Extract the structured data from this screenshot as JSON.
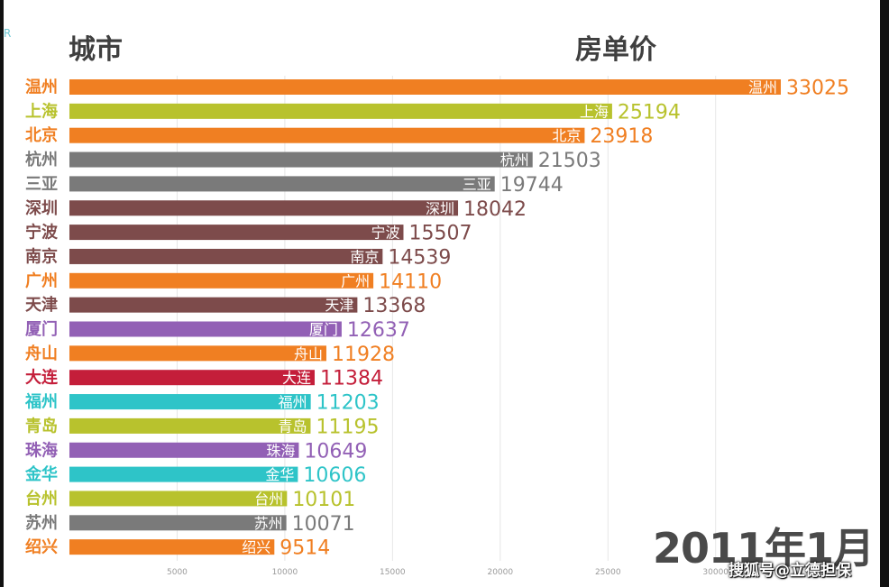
{
  "header": {
    "city_label": "城市",
    "price_label": "房单价",
    "corner_mark": "R"
  },
  "date_label": "2011年1月",
  "watermark": "搜狐号@立德担保",
  "chart_data": {
    "type": "bar",
    "orientation": "horizontal",
    "title": "",
    "xlabel": "",
    "ylabel": "",
    "xlim": [
      0,
      33025
    ],
    "xticks": [
      5000,
      10000,
      15000,
      20000,
      25000,
      30000
    ],
    "categories": [
      "温州",
      "上海",
      "北京",
      "杭州",
      "三亚",
      "深圳",
      "宁波",
      "南京",
      "广州",
      "天津",
      "厦门",
      "舟山",
      "大连",
      "福州",
      "青岛",
      "珠海",
      "金华",
      "台州",
      "苏州",
      "绍兴"
    ],
    "values": [
      33025,
      25194,
      23918,
      21503,
      19744,
      18042,
      15507,
      14539,
      14110,
      13368,
      12637,
      11928,
      11384,
      11203,
      11195,
      10649,
      10606,
      10101,
      10071,
      9514
    ],
    "colors": [
      "#f07f22",
      "#b8c22d",
      "#f07f22",
      "#7a7a7a",
      "#7a7a7a",
      "#7d4b4b",
      "#7d4b4b",
      "#7d4b4b",
      "#f07f22",
      "#7d4b4b",
      "#9260b5",
      "#f07f22",
      "#c41e3a",
      "#2ec4c8",
      "#b8c22d",
      "#9260b5",
      "#2ec4c8",
      "#b8c22d",
      "#7a7a7a",
      "#f07f22"
    ]
  }
}
